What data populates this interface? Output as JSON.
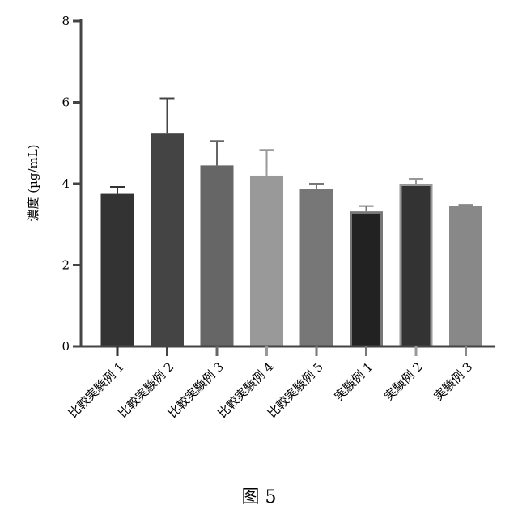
{
  "chart_data": {
    "type": "bar",
    "ylabel": "濃度 (µg/mL)",
    "xlabel": "",
    "ylim": [
      0,
      8
    ],
    "yticks": [
      0,
      2,
      4,
      6,
      8
    ],
    "grid": false,
    "categories": [
      "比較実験例 1",
      "比較実験例 2",
      "比較実験例 3",
      "比較実験例 4",
      "比較実験例 5",
      "実験例 1",
      "実験例 2",
      "実験例 3"
    ],
    "values": [
      3.75,
      5.25,
      4.45,
      4.2,
      3.87,
      3.32,
      4.0,
      3.45
    ],
    "errors": [
      0.17,
      0.85,
      0.6,
      0.63,
      0.13,
      0.13,
      0.12,
      0.03
    ],
    "colors": [
      "#333333",
      "#444444",
      "#666666",
      "#999999",
      "#777777",
      "#222222",
      "#333333",
      "#888888"
    ],
    "outline_colors": [
      "#333333",
      "#444444",
      "#666666",
      "#999999",
      "#777777",
      "#777777",
      "#999999",
      "#888888"
    ]
  },
  "caption": "图 5"
}
